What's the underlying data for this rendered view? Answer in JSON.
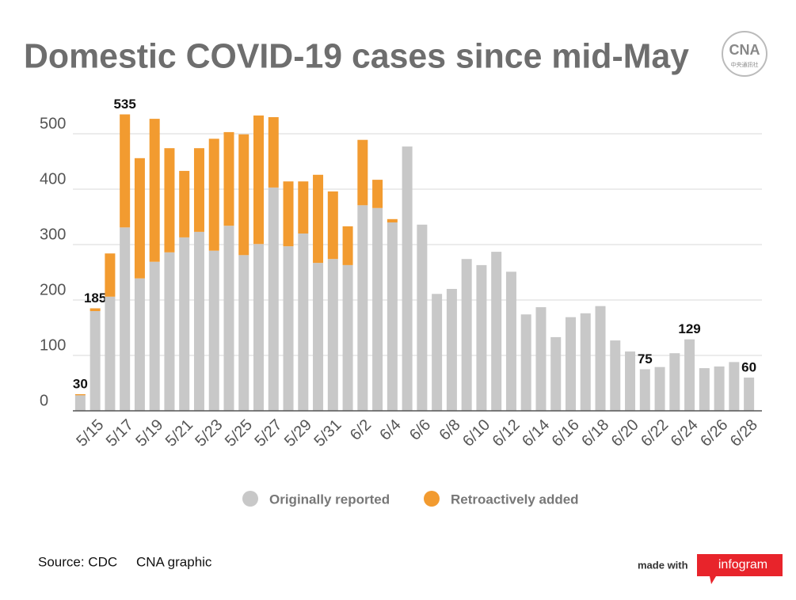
{
  "chart_data": {
    "type": "stacked_bar",
    "title": "Domestic COVID-19 cases since mid-May",
    "categories": [
      null,
      "5/15",
      null,
      "5/17",
      null,
      "5/19",
      null,
      "5/21",
      null,
      "5/23",
      null,
      "5/25",
      null,
      "5/27",
      null,
      "5/29",
      null,
      "5/31",
      null,
      "6/2",
      null,
      "6/4",
      null,
      "6/6",
      null,
      "6/8",
      null,
      "6/10",
      null,
      "6/12",
      null,
      "6/14",
      null,
      "6/16",
      null,
      "6/18",
      null,
      "6/20",
      null,
      "6/22",
      null,
      "6/24",
      null,
      "6/26",
      null,
      "6/28"
    ],
    "series": [
      {
        "name": "Originally reported",
        "color": "#c8c8c8",
        "values": [
          28,
          180,
          206,
          331,
          239,
          269,
          286,
          313,
          323,
          289,
          334,
          281,
          301,
          403,
          297,
          320,
          267,
          274,
          263,
          371,
          366,
          340,
          477,
          336,
          211,
          220,
          274,
          263,
          287,
          251,
          174,
          187,
          133,
          169,
          176,
          189,
          127,
          107,
          75,
          79,
          104,
          129,
          77,
          80,
          88,
          60
        ]
      },
      {
        "name": "Retroactively added",
        "color": "#f29b30",
        "values": [
          2,
          5,
          78,
          204,
          217,
          258,
          188,
          120,
          151,
          202,
          169,
          218,
          232,
          127,
          117,
          94,
          159,
          122,
          70,
          118,
          51,
          6,
          0,
          0,
          0,
          0,
          0,
          0,
          0,
          0,
          0,
          0,
          0,
          0,
          0,
          0,
          0,
          0,
          0,
          0,
          0,
          0,
          0,
          0,
          0,
          0
        ]
      }
    ],
    "total_labels": [
      30,
      185,
      null,
      535,
      null,
      null,
      null,
      null,
      null,
      null,
      null,
      null,
      null,
      null,
      null,
      null,
      null,
      null,
      null,
      null,
      null,
      null,
      null,
      null,
      null,
      null,
      null,
      null,
      null,
      null,
      null,
      null,
      null,
      null,
      null,
      null,
      null,
      null,
      75,
      null,
      null,
      129,
      null,
      null,
      null,
      60
    ],
    "ylim": [
      0,
      550
    ],
    "yticks": [
      0,
      100,
      200,
      300,
      400,
      500
    ],
    "grid": true,
    "legend": "bottom",
    "source": "Source: CDC",
    "credit": "CNA graphic",
    "made_with": "made with",
    "brand": "infogram",
    "logo": "CNA",
    "logo_sub": "中央通訊社"
  }
}
